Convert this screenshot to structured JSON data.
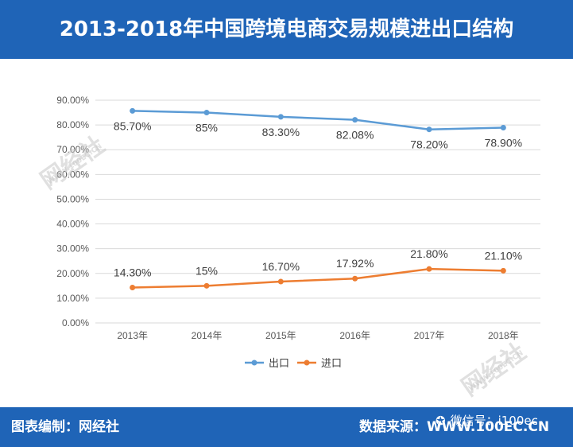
{
  "header": {
    "title": "2013-2018年中国跨境电商交易规模进出口结构"
  },
  "footer": {
    "left": "图表编制：网经社",
    "right": "数据来源：WWW.100EC.CN",
    "wechat": "微信号：i100ec"
  },
  "watermark": {
    "name": "网经社",
    "url": "WWW.100EC.CN"
  },
  "colors": {
    "header_bg": "#1f64b7",
    "export": "#5b9bd5",
    "import": "#ed7d31"
  },
  "chart_data": {
    "type": "line",
    "title": "2013-2018年中国跨境电商交易规模进出口结构",
    "categories": [
      "2013年",
      "2014年",
      "2015年",
      "2016年",
      "2017年",
      "2018年"
    ],
    "yticks": [
      "0.00%",
      "10.00%",
      "20.00%",
      "30.00%",
      "40.00%",
      "50.00%",
      "60.00%",
      "70.00%",
      "80.00%",
      "90.00%"
    ],
    "ylim": [
      0,
      90
    ],
    "grid": true,
    "legend_position": "bottom",
    "series": [
      {
        "name": "出口",
        "values": [
          85.7,
          85,
          83.3,
          82.08,
          78.2,
          78.9
        ],
        "labels": [
          "85.70%",
          "85%",
          "83.30%",
          "82.08%",
          "78.20%",
          "78.90%"
        ]
      },
      {
        "name": "进口",
        "values": [
          14.3,
          15,
          16.7,
          17.92,
          21.8,
          21.1
        ],
        "labels": [
          "14.30%",
          "15%",
          "16.70%",
          "17.92%",
          "21.80%",
          "21.10%"
        ]
      }
    ]
  }
}
